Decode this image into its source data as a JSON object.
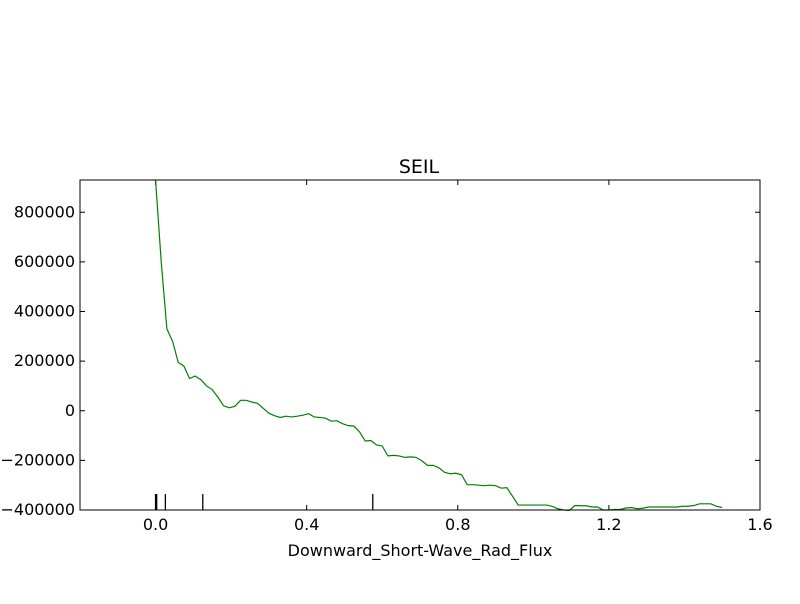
{
  "chart_data": {
    "type": "line",
    "title": "SEIL",
    "xlabel": "Downward_Short-Wave_Rad_Flux",
    "ylabel": "",
    "xlim": [
      -0.2,
      1.6
    ],
    "ylim": [
      -400000,
      930000
    ],
    "grid": false,
    "x_ticks": [
      0.0,
      0.4,
      0.8,
      1.2,
      1.6
    ],
    "x_tick_labels": [
      "0.0",
      "0.4",
      "0.8",
      "1.2",
      "1.6"
    ],
    "y_ticks": [
      -400000,
      -200000,
      0,
      200000,
      400000,
      600000,
      800000
    ],
    "y_tick_labels": [
      "−400000",
      "−200000",
      "0",
      "200000",
      "400000",
      "600000",
      "800000"
    ],
    "rug": [
      0.0,
      0.003,
      0.026,
      0.125,
      0.575
    ],
    "series": [
      {
        "color": "#008000",
        "x": [
          0.0,
          0.015,
          0.03,
          0.045,
          0.06,
          0.075,
          0.09,
          0.105,
          0.12,
          0.135,
          0.15,
          0.165,
          0.18,
          0.195,
          0.21,
          0.225,
          0.24,
          0.255,
          0.27,
          0.285,
          0.3,
          0.315,
          0.33,
          0.345,
          0.36,
          0.375,
          0.39,
          0.405,
          0.42,
          0.435,
          0.45,
          0.465,
          0.48,
          0.495,
          0.51,
          0.525,
          0.54,
          0.555,
          0.57,
          0.585,
          0.6,
          0.615,
          0.63,
          0.645,
          0.66,
          0.675,
          0.69,
          0.705,
          0.72,
          0.735,
          0.75,
          0.765,
          0.78,
          0.795,
          0.81,
          0.825,
          0.84,
          0.855,
          0.87,
          0.885,
          0.9,
          0.915,
          0.93,
          0.945,
          0.96,
          0.975,
          0.99,
          1.005,
          1.02,
          1.035,
          1.05,
          1.065,
          1.08,
          1.095,
          1.11,
          1.125,
          1.14,
          1.155,
          1.17,
          1.185,
          1.2,
          1.215,
          1.23,
          1.245,
          1.26,
          1.275,
          1.29,
          1.305,
          1.32,
          1.335,
          1.35,
          1.365,
          1.38,
          1.395,
          1.41,
          1.425,
          1.44,
          1.455,
          1.47,
          1.485,
          1.5
        ],
        "y": [
          930000,
          600000,
          330000,
          280000,
          195000,
          180000,
          130000,
          140000,
          125000,
          100000,
          85000,
          55000,
          20000,
          12000,
          18000,
          42000,
          42000,
          35000,
          30000,
          10000,
          -10000,
          -20000,
          -27000,
          -22000,
          -25000,
          -22000,
          -18000,
          -12000,
          -25000,
          -27000,
          -30000,
          -42000,
          -40000,
          -52000,
          -60000,
          -62000,
          -85000,
          -122000,
          -120000,
          -138000,
          -142000,
          -182000,
          -180000,
          -182000,
          -188000,
          -186000,
          -188000,
          -202000,
          -220000,
          -220000,
          -230000,
          -248000,
          -254000,
          -252000,
          -258000,
          -298000,
          -298000,
          -300000,
          -302000,
          -300000,
          -302000,
          -312000,
          -310000,
          -345000,
          -380000,
          -380000,
          -380000,
          -380000,
          -380000,
          -380000,
          -385000,
          -395000,
          -400000,
          -402000,
          -382000,
          -383000,
          -383000,
          -388000,
          -388000,
          -400000,
          -400000,
          -398000,
          -398000,
          -392000,
          -390000,
          -395000,
          -393000,
          -388000,
          -388000,
          -388000,
          -388000,
          -388000,
          -388000,
          -385000,
          -385000,
          -382000,
          -375000,
          -375000,
          -375000,
          -385000,
          -390000
        ]
      }
    ]
  }
}
